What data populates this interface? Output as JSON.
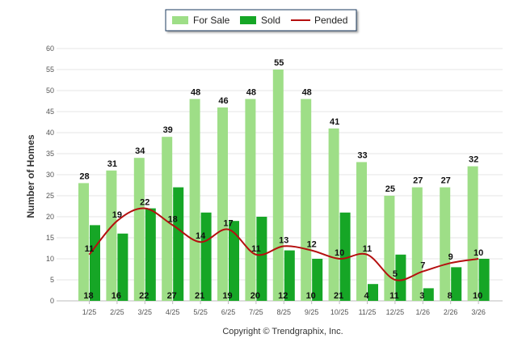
{
  "chart_data": {
    "type": "bar",
    "ylabel": "Number of Homes",
    "xlabel": "",
    "ylim": [
      0,
      60
    ],
    "yticks": [
      0,
      5,
      10,
      15,
      20,
      25,
      30,
      35,
      40,
      45,
      50,
      55,
      60
    ],
    "categories": [
      "1/25",
      "2/25",
      "3/25",
      "4/25",
      "5/25",
      "6/25",
      "7/25",
      "8/25",
      "9/25",
      "10/25",
      "11/25",
      "12/25",
      "1/26",
      "2/26",
      "3/26"
    ],
    "series": [
      {
        "name": "For Sale",
        "type": "bar",
        "color": "#9ede87",
        "values": [
          28,
          31,
          34,
          39,
          48,
          46,
          48,
          55,
          48,
          41,
          33,
          25,
          27,
          27,
          32
        ]
      },
      {
        "name": "Sold",
        "type": "bar",
        "color": "#16a626",
        "values": [
          18,
          16,
          22,
          27,
          21,
          19,
          20,
          12,
          10,
          21,
          4,
          11,
          3,
          8,
          10
        ]
      },
      {
        "name": "Pended",
        "type": "line",
        "color": "#b50f0f",
        "values": [
          11,
          19,
          22,
          18,
          14,
          17,
          11,
          13,
          12,
          10,
          11,
          5,
          7,
          9,
          10
        ]
      }
    ],
    "legend": "top-center",
    "grid": true
  },
  "copyright": "Copyright © Trendgraphix, Inc."
}
